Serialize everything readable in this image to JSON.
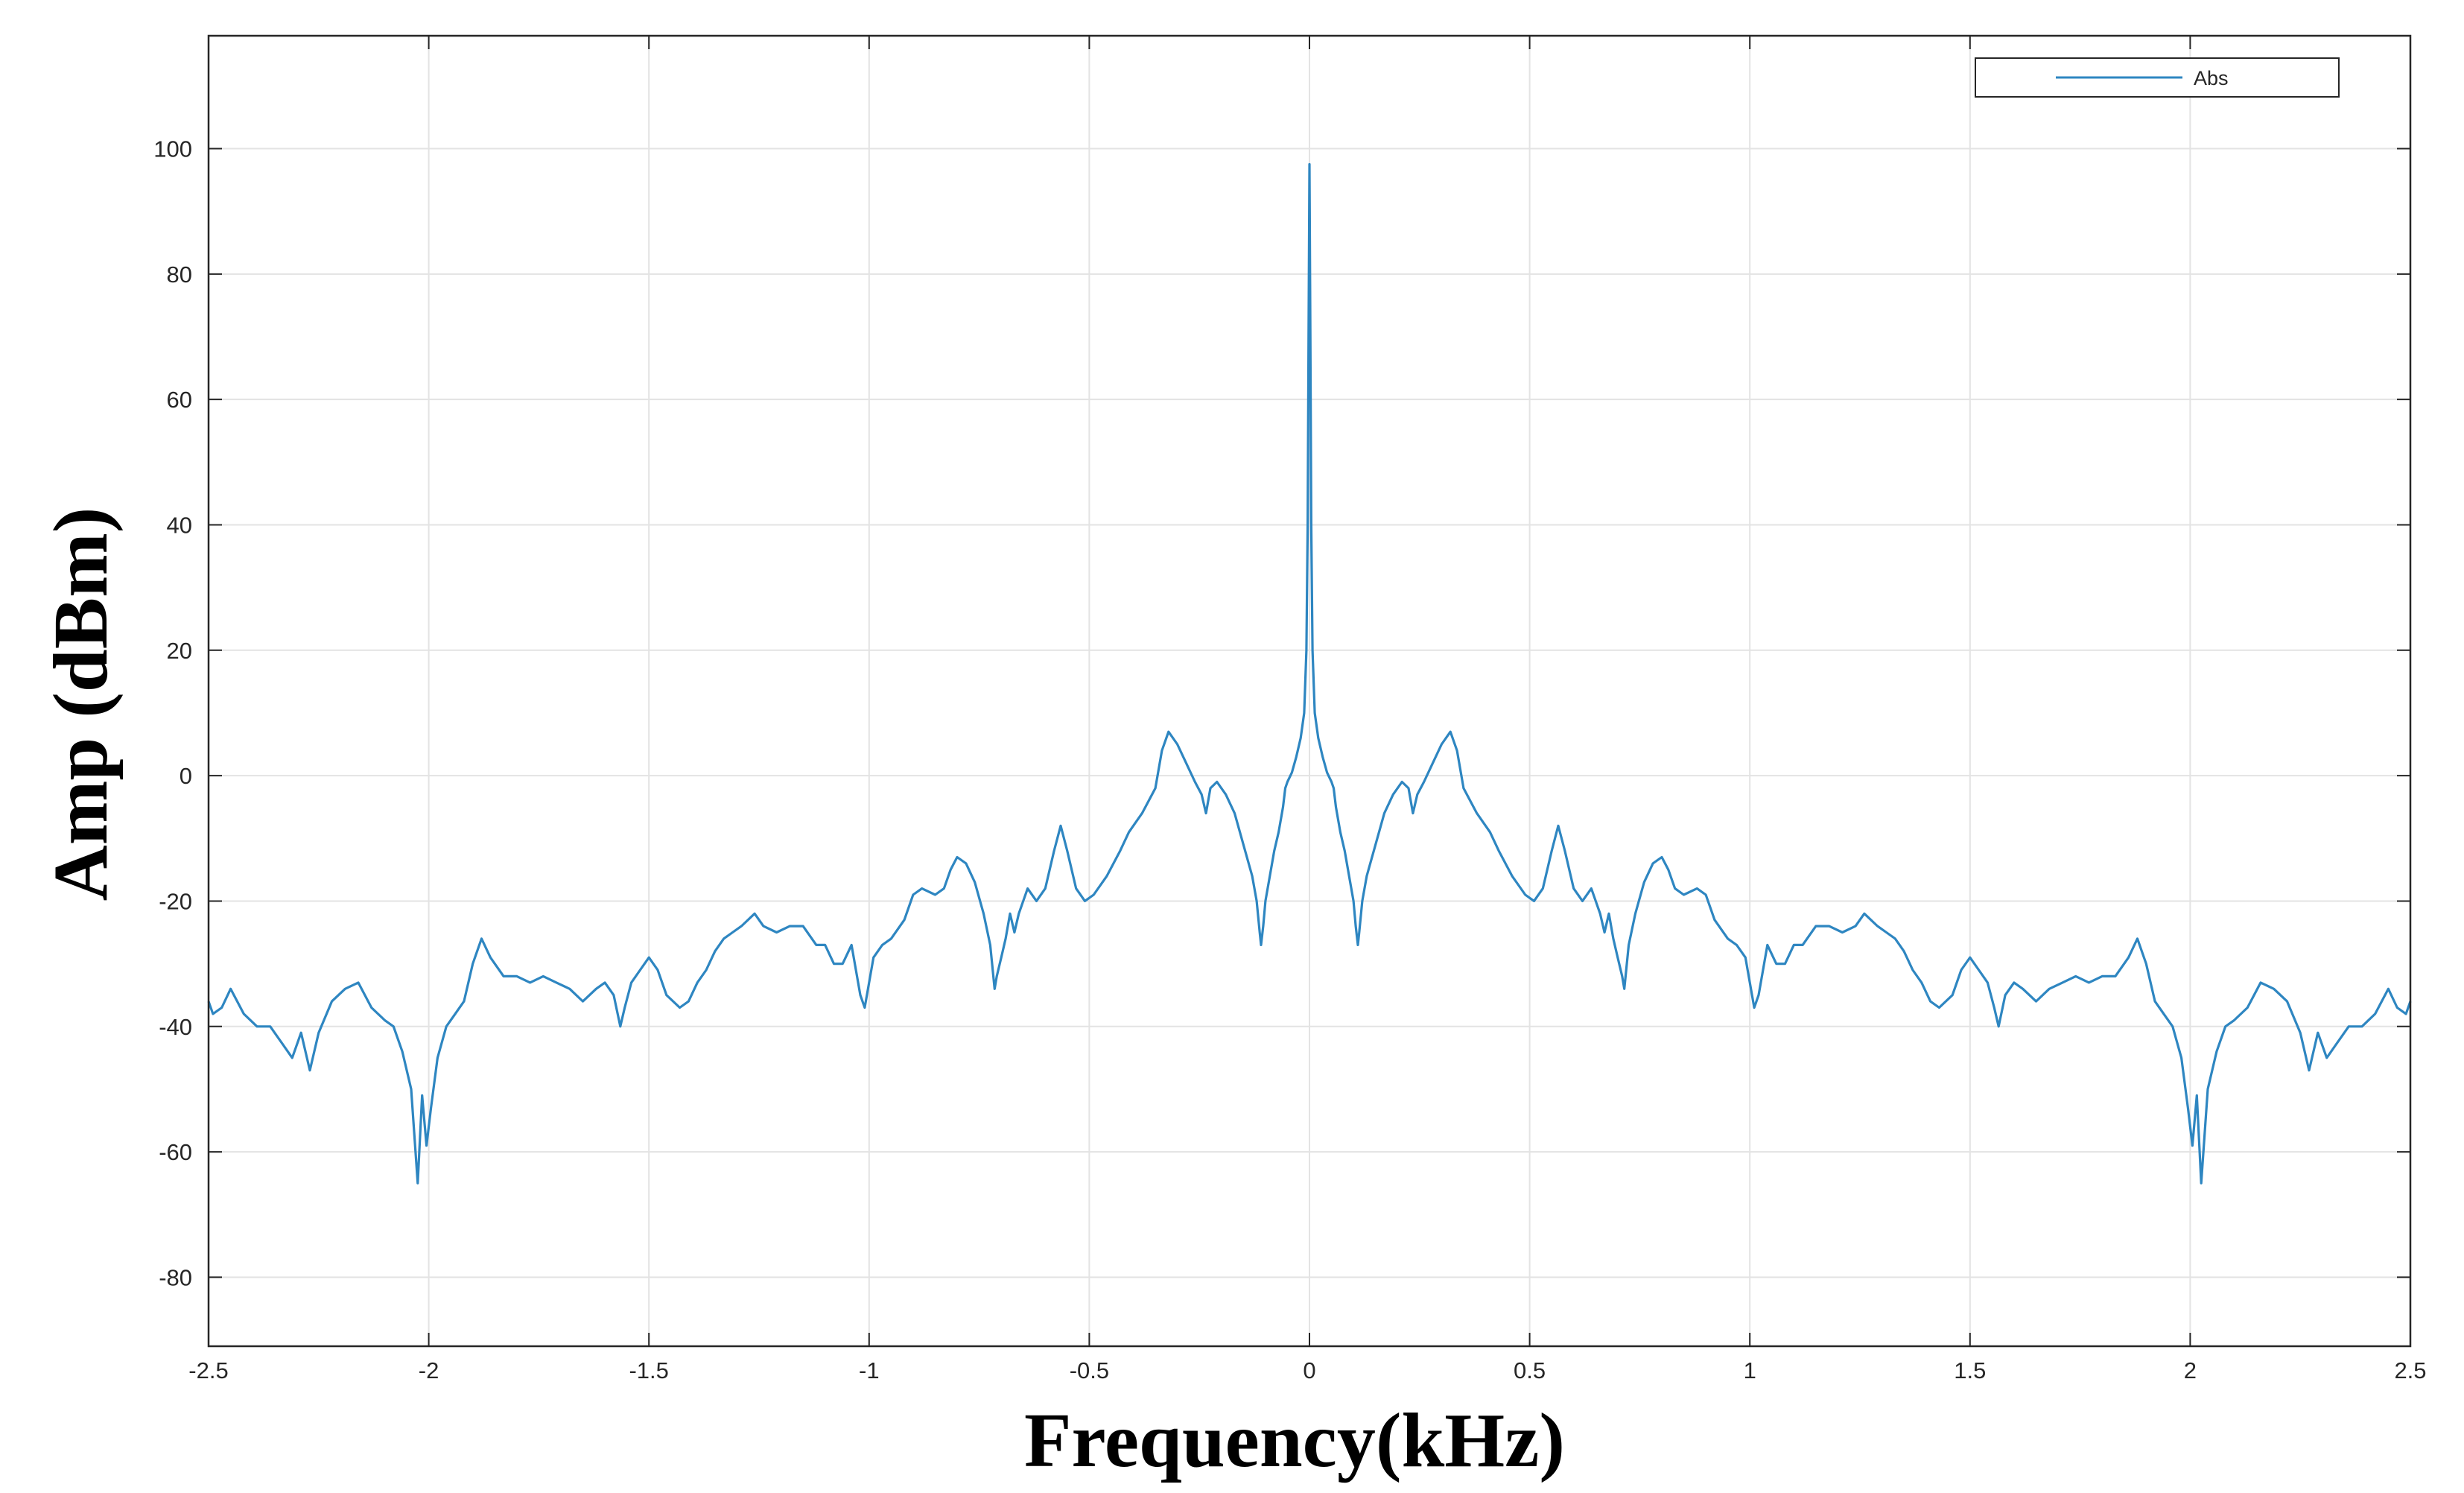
{
  "chart_data": {
    "type": "line",
    "title": "",
    "xlabel": "Frequency(kHz)",
    "ylabel": "Amp (dBm)",
    "xlim": [
      -2.5,
      2.5
    ],
    "ylim": [
      -91,
      118
    ],
    "xticks": [
      -2.5,
      -2,
      -1.5,
      -1,
      -0.5,
      0,
      0.5,
      1,
      1.5,
      2,
      2.5
    ],
    "xtick_labels": [
      "-2.5",
      "-2",
      "-1.5",
      "-1",
      "-0.5",
      "0",
      "0.5",
      "1",
      "1.5",
      "2",
      "2.5"
    ],
    "yticks": [
      -80,
      -60,
      -40,
      -20,
      0,
      20,
      40,
      60,
      80,
      100
    ],
    "ytick_labels": [
      "-80",
      "-60",
      "-40",
      "-20",
      "0",
      "20",
      "40",
      "60",
      "80",
      "100"
    ],
    "grid": true,
    "legend": {
      "position": "top-right",
      "entries": [
        "Abs"
      ]
    },
    "symmetric_about_zero": true,
    "series": [
      {
        "name": "Abs",
        "color": "#2e86c1",
        "half_points": [
          [
            0.0,
            97.5
          ],
          [
            0.002,
            70
          ],
          [
            0.004,
            40
          ],
          [
            0.007,
            20
          ],
          [
            0.012,
            10
          ],
          [
            0.02,
            6
          ],
          [
            0.03,
            3
          ],
          [
            0.04,
            0.5
          ],
          [
            0.05,
            -1
          ],
          [
            0.055,
            -2
          ],
          [
            0.06,
            -5
          ],
          [
            0.07,
            -9
          ],
          [
            0.08,
            -12
          ],
          [
            0.09,
            -16
          ],
          [
            0.1,
            -20
          ],
          [
            0.105,
            -24
          ],
          [
            0.11,
            -27
          ],
          [
            0.113,
            -25
          ],
          [
            0.12,
            -20
          ],
          [
            0.13,
            -16
          ],
          [
            0.15,
            -11
          ],
          [
            0.17,
            -6
          ],
          [
            0.19,
            -3
          ],
          [
            0.21,
            -1
          ],
          [
            0.225,
            -2
          ],
          [
            0.235,
            -6
          ],
          [
            0.245,
            -3
          ],
          [
            0.26,
            -1
          ],
          [
            0.28,
            2
          ],
          [
            0.3,
            5
          ],
          [
            0.32,
            7
          ],
          [
            0.335,
            4
          ],
          [
            0.35,
            -2
          ],
          [
            0.38,
            -6
          ],
          [
            0.41,
            -9
          ],
          [
            0.43,
            -12
          ],
          [
            0.46,
            -16
          ],
          [
            0.49,
            -19
          ],
          [
            0.51,
            -20
          ],
          [
            0.53,
            -18
          ],
          [
            0.55,
            -12
          ],
          [
            0.565,
            -8
          ],
          [
            0.58,
            -12
          ],
          [
            0.6,
            -18
          ],
          [
            0.62,
            -20
          ],
          [
            0.64,
            -18
          ],
          [
            0.66,
            -22
          ],
          [
            0.67,
            -25
          ],
          [
            0.68,
            -22
          ],
          [
            0.69,
            -26
          ],
          [
            0.7,
            -29
          ],
          [
            0.71,
            -32
          ],
          [
            0.715,
            -34
          ],
          [
            0.725,
            -27
          ],
          [
            0.74,
            -22
          ],
          [
            0.76,
            -17
          ],
          [
            0.78,
            -14
          ],
          [
            0.8,
            -13
          ],
          [
            0.815,
            -15
          ],
          [
            0.83,
            -18
          ],
          [
            0.85,
            -19
          ],
          [
            0.88,
            -18
          ],
          [
            0.9,
            -19
          ],
          [
            0.92,
            -23
          ],
          [
            0.95,
            -26
          ],
          [
            0.97,
            -27
          ],
          [
            0.99,
            -29
          ],
          [
            1.0,
            -33
          ],
          [
            1.01,
            -37
          ],
          [
            1.02,
            -35
          ],
          [
            1.04,
            -27
          ],
          [
            1.06,
            -30
          ],
          [
            1.08,
            -30
          ],
          [
            1.1,
            -27
          ],
          [
            1.12,
            -27
          ],
          [
            1.15,
            -24
          ],
          [
            1.18,
            -24
          ],
          [
            1.21,
            -25
          ],
          [
            1.24,
            -24
          ],
          [
            1.26,
            -22
          ],
          [
            1.29,
            -24
          ],
          [
            1.31,
            -25
          ],
          [
            1.33,
            -26
          ],
          [
            1.35,
            -28
          ],
          [
            1.37,
            -31
          ],
          [
            1.39,
            -33
          ],
          [
            1.41,
            -36
          ],
          [
            1.43,
            -37
          ],
          [
            1.46,
            -35
          ],
          [
            1.48,
            -31
          ],
          [
            1.5,
            -29
          ],
          [
            1.52,
            -31
          ],
          [
            1.54,
            -33
          ],
          [
            1.555,
            -37
          ],
          [
            1.565,
            -40
          ],
          [
            1.58,
            -35
          ],
          [
            1.6,
            -33
          ],
          [
            1.62,
            -34
          ],
          [
            1.65,
            -36
          ],
          [
            1.68,
            -34
          ],
          [
            1.71,
            -33
          ],
          [
            1.74,
            -32
          ],
          [
            1.77,
            -33
          ],
          [
            1.8,
            -32
          ],
          [
            1.83,
            -32
          ],
          [
            1.86,
            -29
          ],
          [
            1.88,
            -26
          ],
          [
            1.9,
            -30
          ],
          [
            1.92,
            -36
          ],
          [
            1.94,
            -38
          ],
          [
            1.96,
            -40
          ],
          [
            1.98,
            -45
          ],
          [
            1.995,
            -53
          ],
          [
            2.005,
            -59
          ],
          [
            2.015,
            -51
          ],
          [
            2.025,
            -65
          ],
          [
            2.04,
            -50
          ],
          [
            2.06,
            -44
          ],
          [
            2.08,
            -40
          ],
          [
            2.1,
            -39
          ],
          [
            2.13,
            -37
          ],
          [
            2.16,
            -33
          ],
          [
            2.19,
            -34
          ],
          [
            2.22,
            -36
          ],
          [
            2.25,
            -41
          ],
          [
            2.27,
            -47
          ],
          [
            2.29,
            -41
          ],
          [
            2.31,
            -45
          ],
          [
            2.33,
            -43
          ],
          [
            2.36,
            -40
          ],
          [
            2.39,
            -40
          ],
          [
            2.42,
            -38
          ],
          [
            2.45,
            -34
          ],
          [
            2.47,
            -37
          ],
          [
            2.49,
            -38
          ],
          [
            2.5,
            -36
          ]
        ]
      }
    ]
  }
}
